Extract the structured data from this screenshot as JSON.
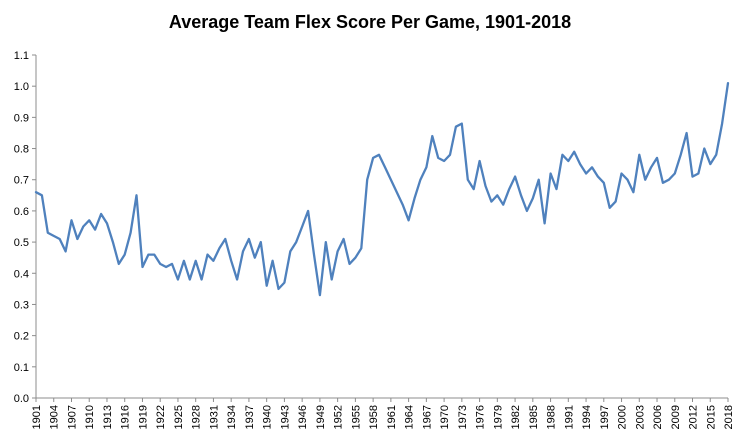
{
  "chart_data": {
    "type": "line",
    "title": "Average Team Flex Score Per Game, 1901-2018",
    "x_start": 1901,
    "x_end": 2018,
    "x_tick_interval": 3,
    "ylim": [
      0.0,
      1.1
    ],
    "y_tick_interval": 0.1,
    "grid": false,
    "legend": "none",
    "line_color": "#4F81BD",
    "axis_color": "#8C8C8C",
    "x_tick_labels": [
      "1901",
      "1904",
      "1907",
      "1910",
      "1913",
      "1916",
      "1919",
      "1922",
      "1925",
      "1928",
      "1931",
      "1934",
      "1937",
      "1940",
      "1943",
      "1946",
      "1949",
      "1952",
      "1955",
      "1958",
      "1961",
      "1964",
      "1967",
      "1970",
      "1973",
      "1976",
      "1979",
      "1982",
      "1985",
      "1988",
      "1991",
      "1994",
      "1997",
      "2000",
      "2003",
      "2006",
      "2009",
      "2012",
      "2015",
      "2018"
    ],
    "y_tick_labels": [
      "0.0",
      "0.1",
      "0.2",
      "0.3",
      "0.4",
      "0.5",
      "0.6",
      "0.7",
      "0.8",
      "0.9",
      "1.0",
      "1.1"
    ],
    "values": [
      0.66,
      0.65,
      0.53,
      0.52,
      0.51,
      0.47,
      0.57,
      0.51,
      0.55,
      0.57,
      0.54,
      0.59,
      0.56,
      0.5,
      0.43,
      0.46,
      0.53,
      0.65,
      0.42,
      0.46,
      0.46,
      0.43,
      0.42,
      0.43,
      0.38,
      0.44,
      0.38,
      0.44,
      0.38,
      0.46,
      0.44,
      0.48,
      0.51,
      0.44,
      0.38,
      0.47,
      0.51,
      0.45,
      0.5,
      0.36,
      0.44,
      0.35,
      0.37,
      0.47,
      0.5,
      0.55,
      0.6,
      0.46,
      0.33,
      0.5,
      0.38,
      0.47,
      0.51,
      0.43,
      0.45,
      0.48,
      0.7,
      0.77,
      0.78,
      0.74,
      0.7,
      0.66,
      0.62,
      0.57,
      0.64,
      0.7,
      0.74,
      0.84,
      0.77,
      0.76,
      0.78,
      0.87,
      0.88,
      0.7,
      0.67,
      0.76,
      0.68,
      0.63,
      0.65,
      0.62,
      0.67,
      0.71,
      0.65,
      0.6,
      0.64,
      0.7,
      0.56,
      0.72,
      0.67,
      0.78,
      0.76,
      0.79,
      0.75,
      0.72,
      0.74,
      0.71,
      0.69,
      0.61,
      0.63,
      0.72,
      0.7,
      0.66,
      0.78,
      0.7,
      0.74,
      0.77,
      0.69,
      0.7,
      0.72,
      0.78,
      0.85,
      0.71,
      0.72,
      0.8,
      0.75,
      0.78,
      0.88,
      1.01
    ]
  }
}
